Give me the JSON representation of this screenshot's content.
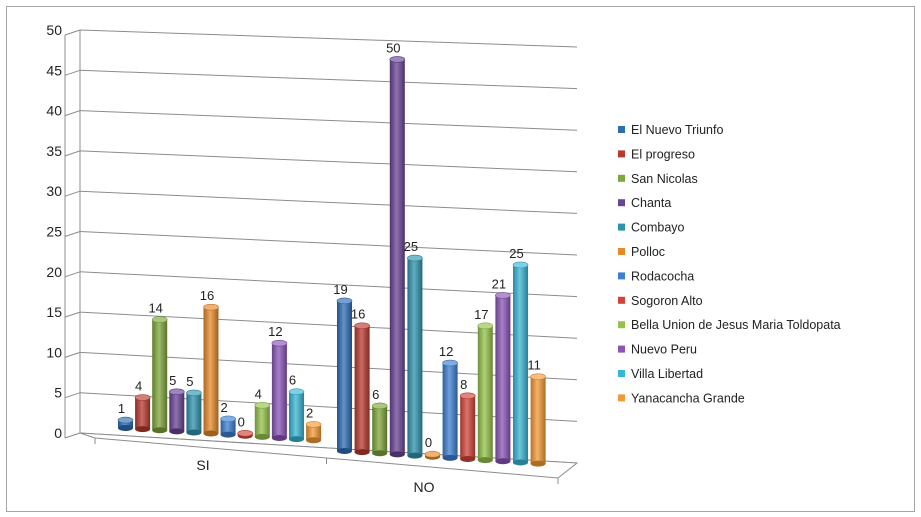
{
  "chart_data": {
    "type": "bar",
    "categories": [
      "SI",
      "NO"
    ],
    "series": [
      {
        "name": "El Nuevo Triunfo",
        "values": [
          1,
          19
        ]
      },
      {
        "name": "El progreso",
        "values": [
          4,
          16
        ]
      },
      {
        "name": "San Nicolas",
        "values": [
          14,
          6
        ]
      },
      {
        "name": "Chanta",
        "values": [
          5,
          50
        ]
      },
      {
        "name": "Combayo",
        "values": [
          5,
          25
        ]
      },
      {
        "name": "Polloc",
        "values": [
          16,
          0
        ]
      },
      {
        "name": "Rodacocha",
        "values": [
          2,
          12
        ]
      },
      {
        "name": "Sogoron Alto",
        "values": [
          0,
          8
        ]
      },
      {
        "name": "Bella Union de Jesus Maria Toldopata",
        "values": [
          4,
          17
        ]
      },
      {
        "name": "Nuevo Peru",
        "values": [
          12,
          21
        ]
      },
      {
        "name": "Villa Libertad",
        "values": [
          6,
          25
        ]
      },
      {
        "name": "Yanacancha Grande",
        "values": [
          2,
          11
        ]
      }
    ],
    "colors": [
      "#2e6db4",
      "#b83a2e",
      "#7fa63a",
      "#6a4496",
      "#2f93ad",
      "#e5892a",
      "#3d7fd0",
      "#d0453a",
      "#94c24a",
      "#8a55b8",
      "#38b6d6",
      "#f49a35"
    ],
    "ylim": [
      0,
      50
    ],
    "yticks": [
      0,
      5,
      10,
      15,
      20,
      25,
      30,
      35,
      40,
      45,
      50
    ],
    "grid": true,
    "legend": "right",
    "style": "3d-clustered-column"
  }
}
